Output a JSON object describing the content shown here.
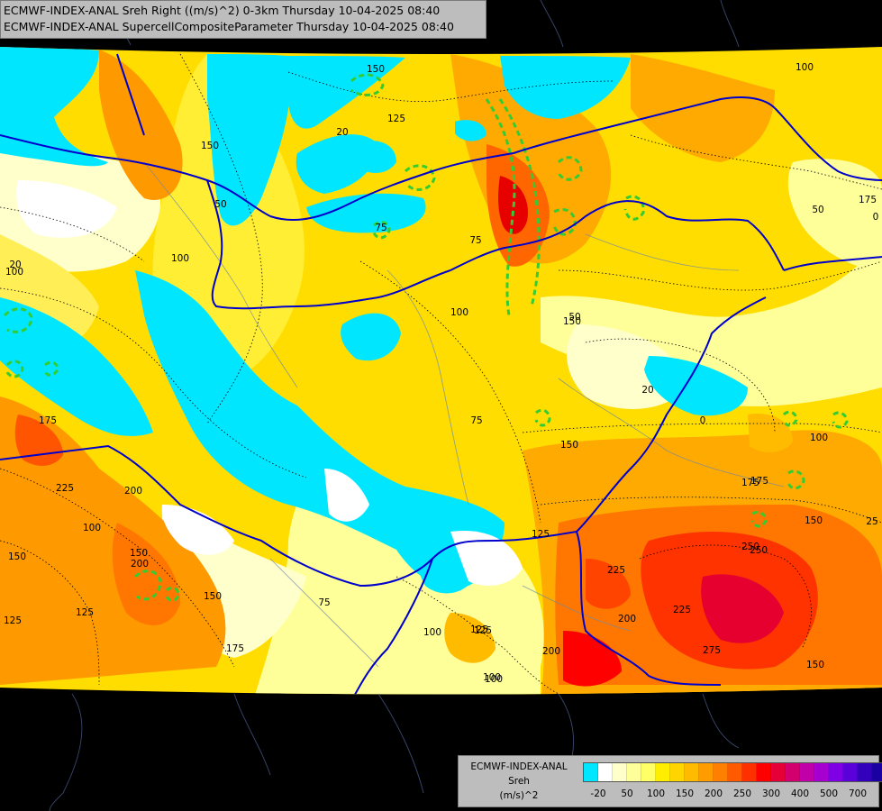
{
  "header": {
    "line1": "ECMWF-INDEX-ANAL Sreh Right ((m/s)^2) 0-3km Thursday 10-04-2025 08:40",
    "line2": "ECMWF-INDEX-ANAL SupercellCompositeParameter Thursday 10-04-2025 08:40"
  },
  "legend": {
    "model": "ECMWF-INDEX-ANAL",
    "variable": "Sreh",
    "unit": "(m/s)^2",
    "colors": [
      "#00e6ff",
      "#ffffff",
      "#ffffcc",
      "#ffff99",
      "#ffff66",
      "#ffee00",
      "#ffd500",
      "#ffbb00",
      "#ff9d00",
      "#ff7f00",
      "#ff5a00",
      "#ff3000",
      "#ff0000",
      "#e60038",
      "#d1006e",
      "#c200a8",
      "#a600d1",
      "#8000e6",
      "#5a00d9",
      "#3300bb",
      "#1a00a0"
    ],
    "tick_labels": [
      "-20",
      "50",
      "100",
      "150",
      "200",
      "250",
      "300",
      "400",
      "500",
      "700"
    ]
  },
  "contour_labels": [
    "100",
    "150",
    "125",
    "20",
    "150",
    "100",
    "50",
    "75",
    "0",
    "100",
    "150",
    "175",
    "125",
    "50",
    "20",
    "100",
    "75",
    "0",
    "20",
    "50",
    "100",
    "75",
    "150",
    "175",
    "100",
    "200",
    "225",
    "250",
    "275",
    "225",
    "150",
    "175",
    "150",
    "125",
    "75",
    "100",
    "125",
    "100",
    "150",
    "200",
    "175",
    "225",
    "150",
    "125",
    "100",
    "200",
    "200",
    "250",
    "175",
    "150",
    "125",
    "25"
  ]
}
